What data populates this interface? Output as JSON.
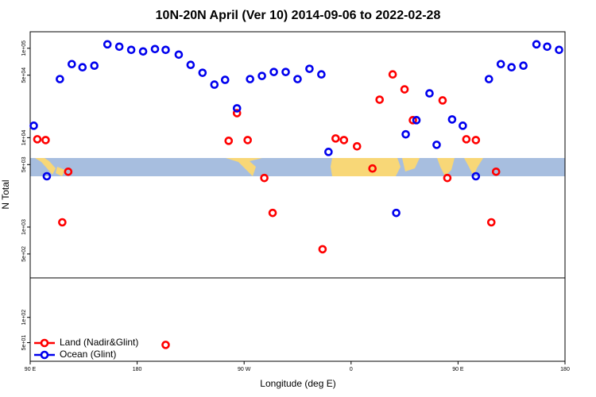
{
  "chart_data": [
    {
      "type": "scatter",
      "title": "10N-20N April (Ver 10)   2014-09-06 to 2022-02-28",
      "ylabel": "N Total",
      "log_y": true,
      "xlim": [
        90,
        540
      ],
      "ylim": [
        270,
        153000
      ],
      "yticks": [
        {
          "value": 500,
          "label": "5e+02"
        },
        {
          "value": 1000,
          "label": "1e+03"
        },
        {
          "value": 5000,
          "label": "5e+03"
        },
        {
          "value": 10000,
          "label": "1e+04"
        },
        {
          "value": 50000,
          "label": "5e+04"
        },
        {
          "value": 100000,
          "label": "1e+05"
        }
      ],
      "series": [
        {
          "name": "Land (Nadir&Glint)",
          "color": "#ff0000",
          "x": [
            96,
            103,
            117,
            122,
            264,
            257,
            273,
            287,
            294,
            336,
            347,
            354,
            365,
            378,
            384,
            395,
            405,
            412,
            437,
            441,
            457,
            465,
            478,
            482
          ],
          "values": [
            9600,
            9400,
            1130,
            4160,
            18800,
            9220,
            9400,
            3540,
            1440,
            565,
            9800,
            9400,
            8000,
            4520,
            26600,
            51000,
            34700,
            15700,
            26100,
            3540,
            9600,
            9400,
            1130,
            4160
          ]
        },
        {
          "name": "Ocean (Glint)",
          "color": "#0000ee",
          "x": [
            93,
            104,
            115,
            125,
            134,
            144,
            155,
            165,
            175,
            185,
            195,
            204,
            215,
            225,
            235,
            245,
            254,
            264,
            275,
            285,
            295,
            305,
            315,
            325,
            335,
            341,
            398,
            406,
            415,
            426,
            432,
            445,
            454,
            465,
            476,
            486,
            495,
            505,
            516,
            525,
            535
          ],
          "values": [
            13600,
            3700,
            45200,
            66500,
            61300,
            63900,
            110700,
            104200,
            96000,
            92200,
            98000,
            96000,
            84900,
            65200,
            53200,
            39200,
            44300,
            21300,
            45200,
            49000,
            54300,
            54300,
            45200,
            58900,
            51000,
            6930,
            1440,
            10900,
            15700,
            31300,
            8320,
            16000,
            13600,
            3700,
            45200,
            66500,
            61300,
            63900,
            110700,
            104200,
            96000
          ]
        }
      ]
    },
    {
      "type": "scatter",
      "xlabel": "Longitude (deg E)",
      "log_y": true,
      "xlim": [
        90,
        540
      ],
      "ylim": [
        30,
        295
      ],
      "xticks": [
        {
          "value": 90,
          "label": "90 E"
        },
        180,
        {
          "value": 270,
          "label": "90 W"
        },
        {
          "value": 360,
          "label": "0"
        },
        {
          "value": 450,
          "label": "90 E"
        },
        {
          "value": 540,
          "label": "180"
        }
      ],
      "yticks": [
        {
          "value": 50,
          "label": "5e+01"
        },
        {
          "value": 100,
          "label": "1e+02"
        }
      ],
      "legend": "lower left",
      "series": [
        {
          "name": "Land (Nadir&Glint)",
          "color": "#ff0000",
          "x": [
            204
          ],
          "values": [
            47
          ]
        },
        {
          "name": "Ocean (Glint)",
          "color": "#0000ee",
          "x": [],
          "values": []
        }
      ]
    }
  ]
}
